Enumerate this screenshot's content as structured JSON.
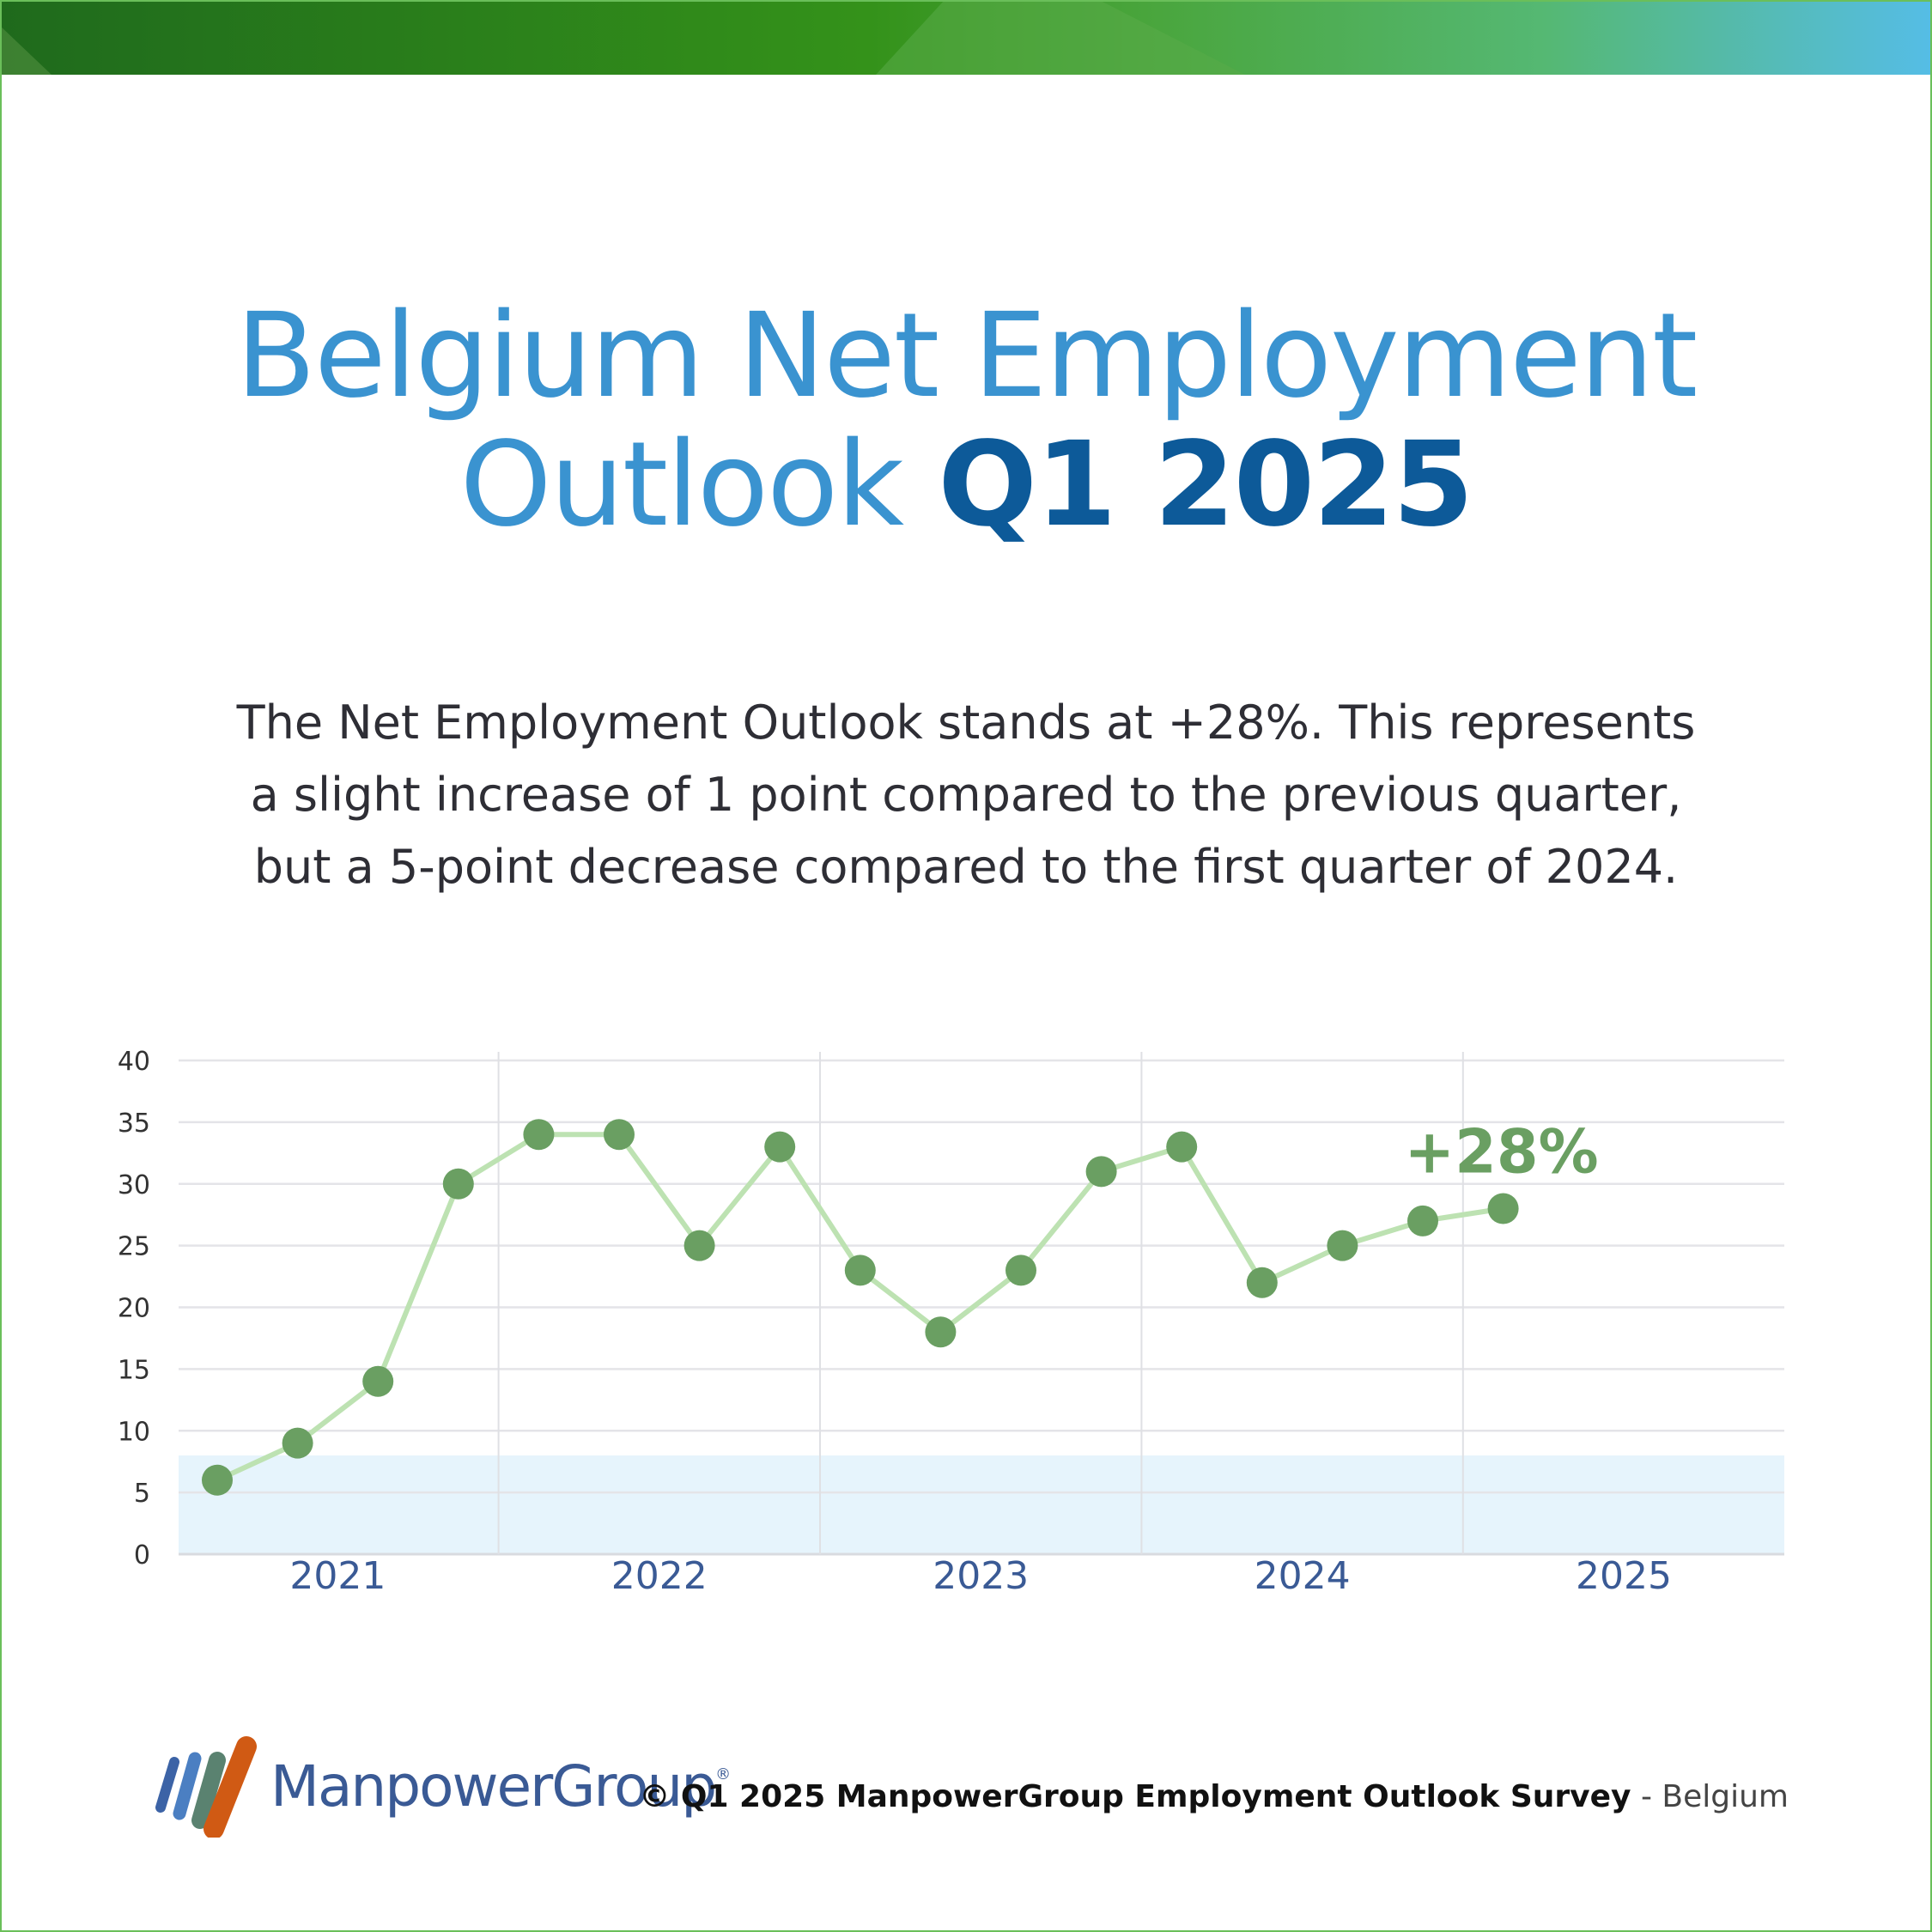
{
  "title": {
    "line1": "Belgium Net Employment",
    "line2_light": "Outlook",
    "line2_bold": "Q1 2025"
  },
  "description": {
    "line1": "The Net Employment Outlook stands at +28%. This represents",
    "line2": "a slight increase of 1 point compared to the previous quarter,",
    "line3": "but a 5-point decrease compared to the first quarter of 2024."
  },
  "footer": {
    "brand": "ManpowerGroup",
    "registered": "®",
    "survey": "© Q1 2025 ManpowerGroup Employment Outlook Survey",
    "separator": " - ",
    "country": "Belgium"
  },
  "colors": {
    "title": "#3a93d0",
    "title_bold": "#0d5a99",
    "line": "#bde2b2",
    "point": "#6a9f62",
    "band": "#e6f4fc",
    "axis_label": "#3a5a95"
  },
  "chart_data": {
    "type": "line",
    "title": "",
    "xlabel": "",
    "ylabel": "",
    "ylim": [
      0,
      40
    ],
    "yticks": [
      0,
      5,
      10,
      15,
      20,
      25,
      30,
      35,
      40
    ],
    "year_labels": [
      "2021",
      "2022",
      "2023",
      "2024",
      "2025"
    ],
    "categories": [
      "Q1 2021",
      "Q2 2021",
      "Q3 2021",
      "Q4 2021",
      "Q1 2022",
      "Q2 2022",
      "Q3 2022",
      "Q4 2022",
      "Q1 2023",
      "Q2 2023",
      "Q3 2023",
      "Q4 2023",
      "Q1 2024",
      "Q2 2024",
      "Q3 2024",
      "Q4 2024",
      "Q1 2025"
    ],
    "values": [
      6,
      9,
      14,
      30,
      34,
      34,
      25,
      33,
      23,
      18,
      23,
      31,
      33,
      22,
      25,
      27,
      28
    ],
    "shaded_band": [
      0,
      8
    ],
    "grid": true,
    "annotation": "+28%"
  }
}
